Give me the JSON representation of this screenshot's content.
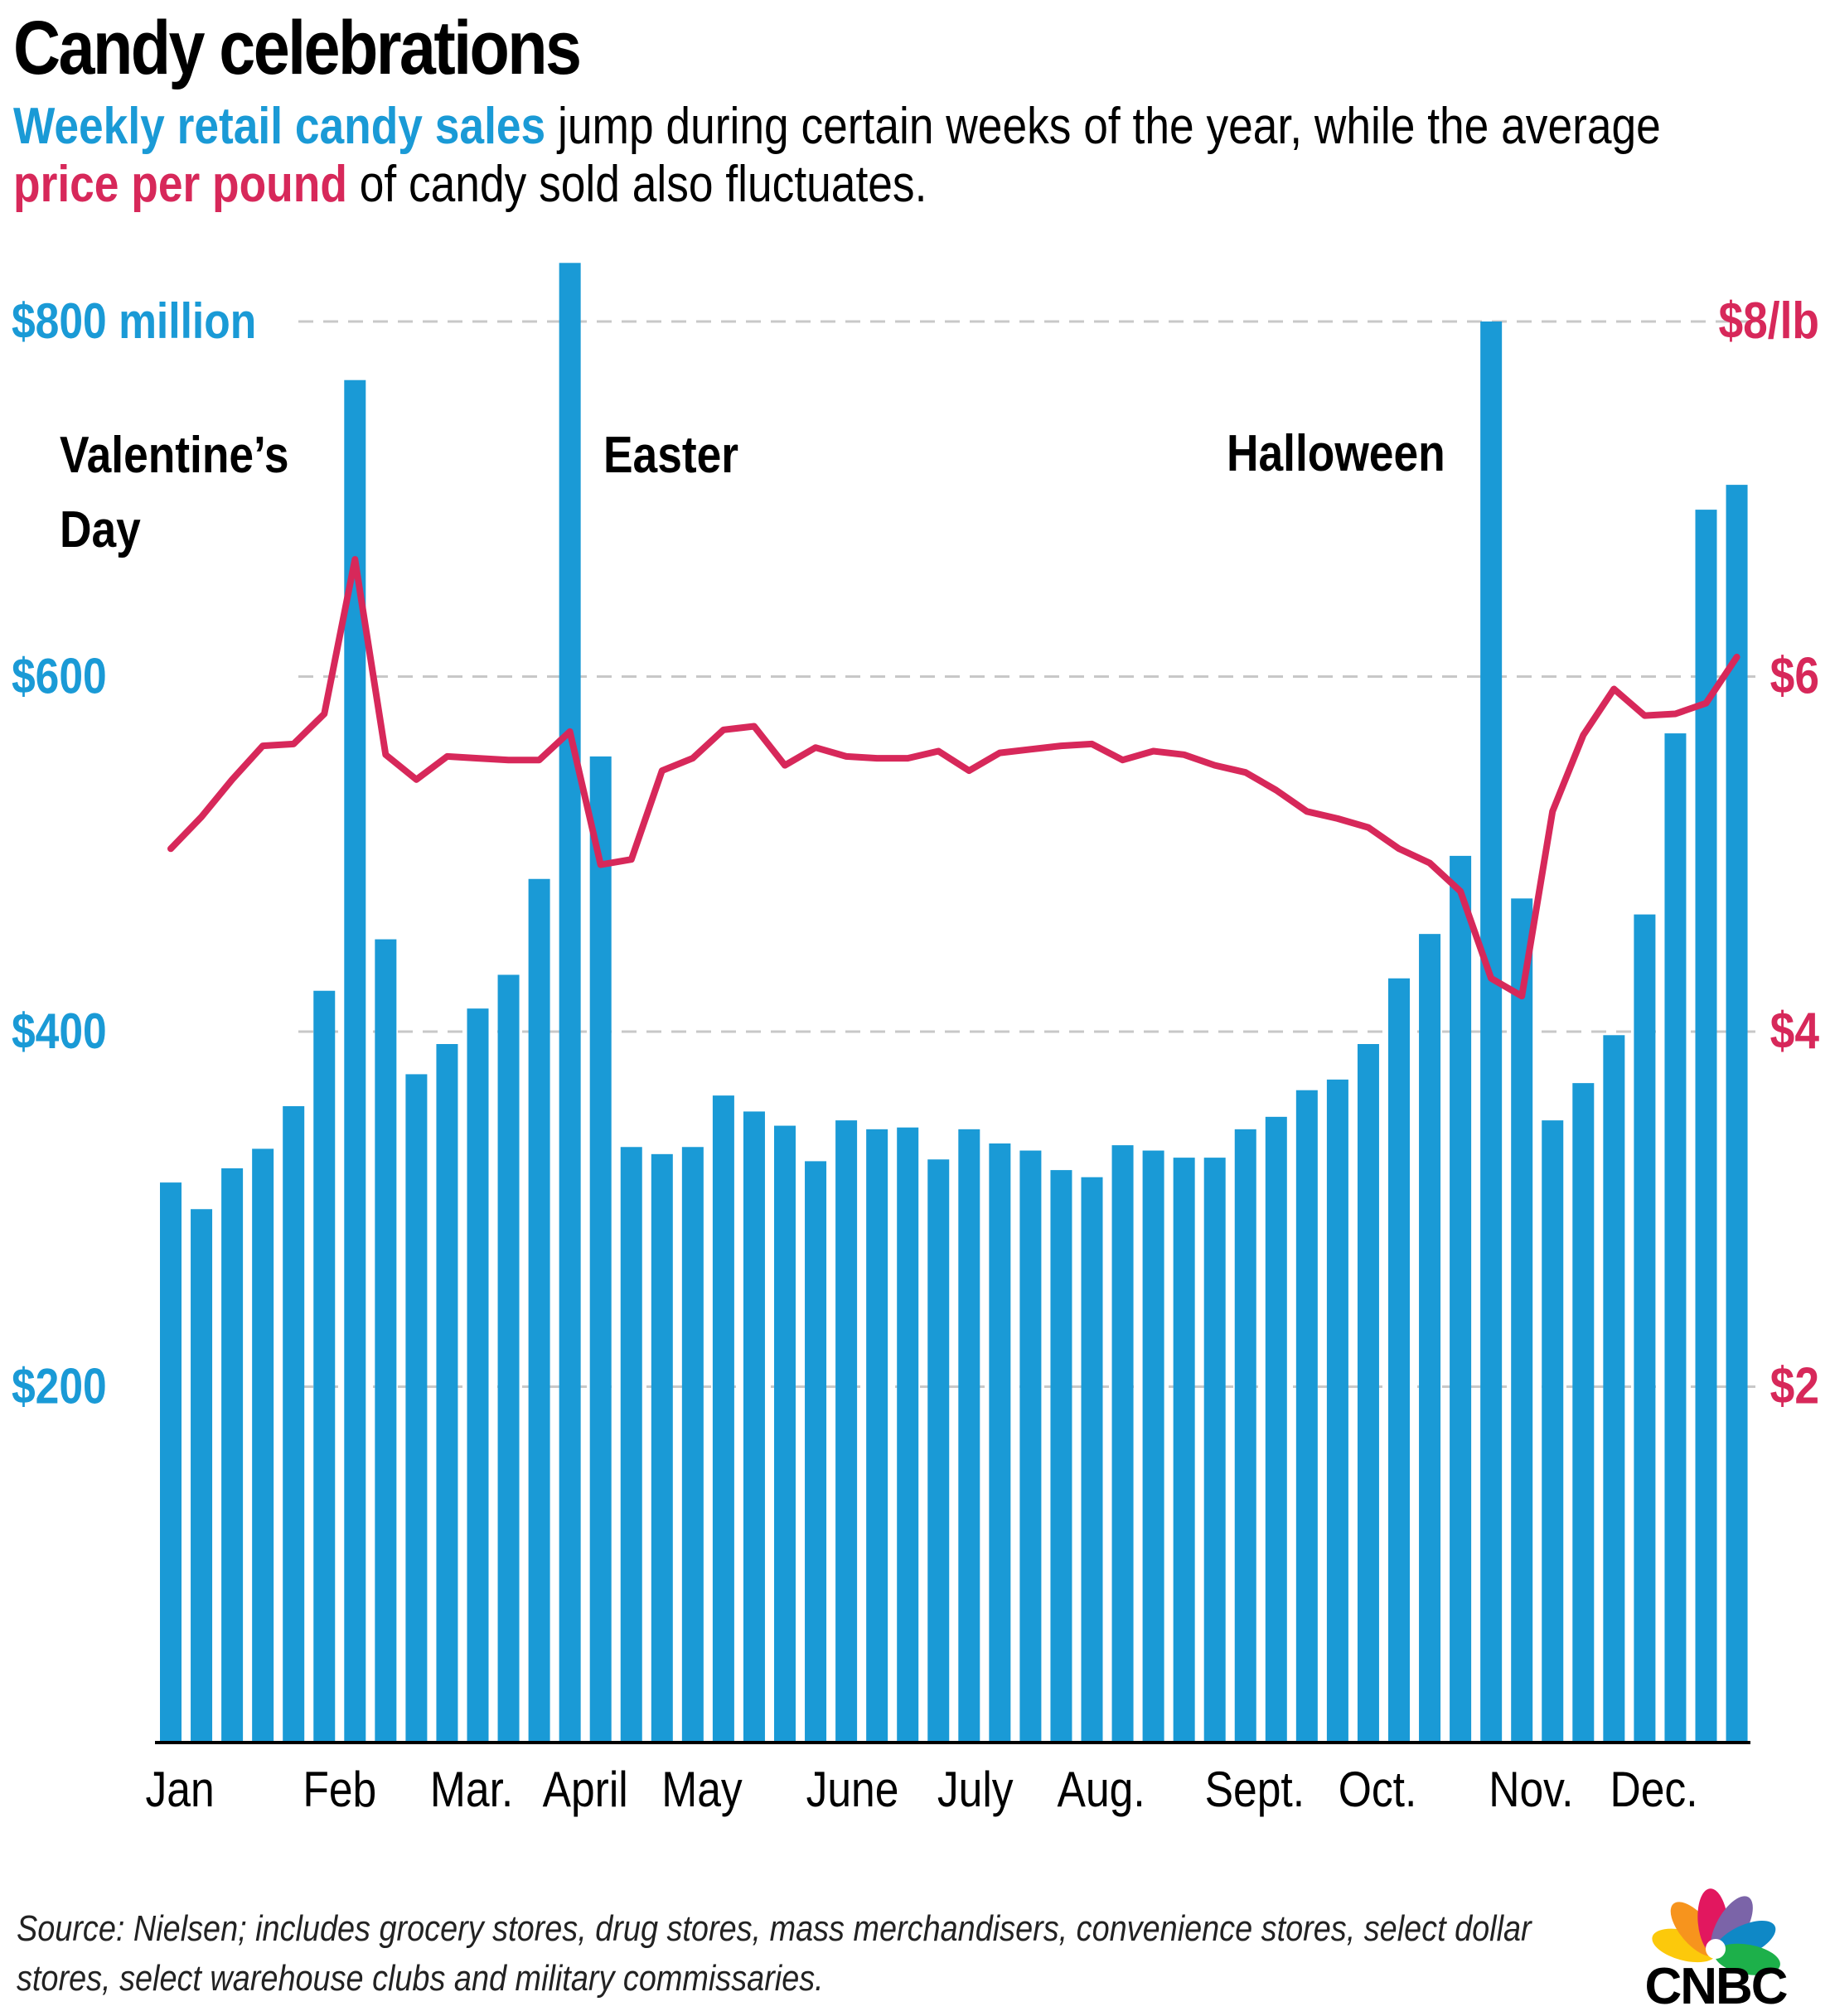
{
  "title": "Candy celebrations",
  "subtitle": {
    "sales_phrase": "Weekly retail candy sales",
    "middle": " jump during certain weeks of the year, while the average ",
    "price_phrase": "price per pound",
    "end": " of candy sold also fluctuates."
  },
  "source": "Source: Nielsen; includes grocery stores, drug stores, mass merchandisers, convenience stores, select dollar stores, select warehouse clubs and military commissaries.",
  "logo": {
    "text": "CNBC",
    "icon": "peacock-icon"
  },
  "colors": {
    "sales": "#1a9ad6",
    "price": "#d7285a",
    "grid": "#c8c8c8",
    "peacock": [
      "#f7941d",
      "#e2175f",
      "#7b64a8",
      "#0f88c6",
      "#1db04a",
      "#fcc90b"
    ]
  },
  "chart_data": {
    "type": "bar",
    "series": [
      {
        "name": "Weekly retail candy sales",
        "type": "bar",
        "unit": "$ million",
        "values": [
          315,
          300,
          323,
          334,
          358,
          423,
          767,
          452,
          376,
          393,
          413,
          432,
          486,
          833,
          555,
          335,
          331,
          335,
          364,
          355,
          347,
          327,
          350,
          345,
          346,
          328,
          345,
          337,
          333,
          322,
          318,
          336,
          333,
          329,
          329,
          345,
          352,
          367,
          373,
          393,
          430,
          455,
          499,
          800,
          475,
          350,
          371,
          398,
          466,
          568,
          694,
          708
        ]
      },
      {
        "name": "Price per pound",
        "type": "line",
        "unit": "$/lb",
        "values": [
          5.03,
          5.21,
          5.42,
          5.61,
          5.62,
          5.79,
          6.66,
          5.56,
          5.42,
          5.55,
          5.54,
          5.53,
          5.53,
          5.69,
          4.94,
          4.97,
          5.47,
          5.54,
          5.7,
          5.72,
          5.5,
          5.6,
          5.55,
          5.54,
          5.54,
          5.58,
          5.47,
          5.57,
          5.59,
          5.61,
          5.62,
          5.53,
          5.58,
          5.56,
          5.5,
          5.46,
          5.36,
          5.24,
          5.2,
          5.15,
          5.03,
          4.95,
          4.79,
          4.3,
          4.2,
          5.24,
          5.67,
          5.93,
          5.78,
          5.79,
          5.85,
          6.11
        ]
      }
    ],
    "x_labels": [
      "Jan",
      "Feb",
      "Mar.",
      "April",
      "May",
      "June",
      "July",
      "Aug.",
      "Sept.",
      "Oct.",
      "Nov.",
      "Dec."
    ],
    "x_label_weeks": [
      0.3,
      5.5,
      9.8,
      13.5,
      17.3,
      22.2,
      26.2,
      30.3,
      35.3,
      39.3,
      44.3,
      48.3
    ],
    "y_left": {
      "min": 0,
      "max": 800,
      "ticks": [
        200,
        400,
        600,
        800
      ],
      "tick_labels": [
        "$200",
        "$400",
        "$600",
        "$800 million"
      ]
    },
    "y_right": {
      "min": 0,
      "max": 8,
      "ticks": [
        2,
        4,
        6,
        8
      ],
      "tick_labels": [
        "$2",
        "$4",
        "$6",
        "$8/lb"
      ]
    },
    "grid": true,
    "annotations": [
      {
        "text": "Valentine’s Day",
        "lines": [
          "Valentine’s",
          "Day"
        ],
        "week": 6
      },
      {
        "text": "Easter",
        "lines": [
          "Easter"
        ],
        "week": 13
      },
      {
        "text": "Halloween",
        "lines": [
          "Halloween"
        ],
        "week": 43
      }
    ]
  }
}
